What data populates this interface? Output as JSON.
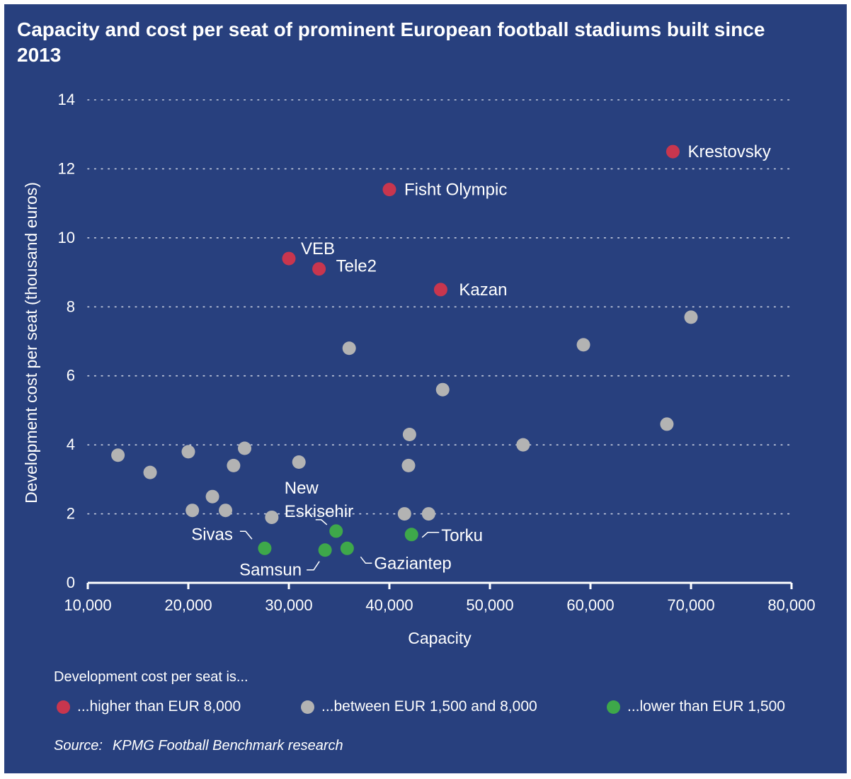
{
  "title": "Capacity and cost per seat of prominent European football stadiums built since 2013",
  "source_label": "Source:",
  "source_text": "KPMG Football Benchmark research",
  "legend": {
    "title": "Development cost per seat is...",
    "items": [
      {
        "label": "...higher than EUR 8,000",
        "color": "#c8364e"
      },
      {
        "label": "...between EUR 1,500 and 8,000",
        "color": "#b3b3b3"
      },
      {
        "label": "...lower than EUR 1,500",
        "color": "#3ea84a"
      }
    ]
  },
  "chart_data": {
    "type": "scatter",
    "title": "Capacity and cost per seat of prominent European football stadiums built since 2013",
    "xlabel": "Capacity",
    "ylabel": "Development cost per seat (thousand euros)",
    "xlim": [
      10000,
      80000
    ],
    "ylim": [
      0,
      14
    ],
    "xticks": [
      10000,
      20000,
      30000,
      40000,
      50000,
      60000,
      70000,
      80000
    ],
    "xtick_labels": [
      "10,000",
      "20,000",
      "30,000",
      "40,000",
      "50,000",
      "60,000",
      "70,000",
      "80,000"
    ],
    "yticks": [
      0,
      2,
      4,
      6,
      8,
      10,
      12,
      14
    ],
    "ytick_labels": [
      "0",
      "2",
      "4",
      "6",
      "8",
      "10",
      "12",
      "14"
    ],
    "grid": "horizontal dotted",
    "legend_position": "bottom",
    "points": [
      {
        "x": 68200,
        "y": 12.5,
        "category": "high",
        "label": "Krestovsky"
      },
      {
        "x": 40000,
        "y": 11.4,
        "category": "high",
        "label": "Fisht Olympic"
      },
      {
        "x": 30000,
        "y": 9.4,
        "category": "high",
        "label": "VEB"
      },
      {
        "x": 33000,
        "y": 9.1,
        "category": "high",
        "label": "Tele2"
      },
      {
        "x": 45100,
        "y": 8.5,
        "category": "high",
        "label": "Kazan"
      },
      {
        "x": 70000,
        "y": 7.7,
        "category": "mid"
      },
      {
        "x": 59300,
        "y": 6.9,
        "category": "mid"
      },
      {
        "x": 36000,
        "y": 6.8,
        "category": "mid"
      },
      {
        "x": 45300,
        "y": 5.6,
        "category": "mid"
      },
      {
        "x": 67600,
        "y": 4.6,
        "category": "mid"
      },
      {
        "x": 42000,
        "y": 4.3,
        "category": "mid"
      },
      {
        "x": 53300,
        "y": 4.0,
        "category": "mid"
      },
      {
        "x": 25600,
        "y": 3.9,
        "category": "mid"
      },
      {
        "x": 20000,
        "y": 3.8,
        "category": "mid"
      },
      {
        "x": 13000,
        "y": 3.7,
        "category": "mid"
      },
      {
        "x": 31000,
        "y": 3.5,
        "category": "mid"
      },
      {
        "x": 41900,
        "y": 3.4,
        "category": "mid"
      },
      {
        "x": 24500,
        "y": 3.4,
        "category": "mid"
      },
      {
        "x": 16200,
        "y": 3.2,
        "category": "mid"
      },
      {
        "x": 22400,
        "y": 2.5,
        "category": "mid"
      },
      {
        "x": 20400,
        "y": 2.1,
        "category": "mid"
      },
      {
        "x": 23700,
        "y": 2.1,
        "category": "mid"
      },
      {
        "x": 43900,
        "y": 2.0,
        "category": "mid"
      },
      {
        "x": 41500,
        "y": 2.0,
        "category": "mid"
      },
      {
        "x": 28300,
        "y": 1.9,
        "category": "mid"
      },
      {
        "x": 42200,
        "y": 1.4,
        "category": "low",
        "label": "Torku"
      },
      {
        "x": 34700,
        "y": 1.5,
        "category": "low",
        "label": "New Eskisehir"
      },
      {
        "x": 35800,
        "y": 1.0,
        "category": "low",
        "label": "Gaziantep"
      },
      {
        "x": 33600,
        "y": 0.95,
        "category": "low",
        "label": "Samsun"
      },
      {
        "x": 27600,
        "y": 1.0,
        "category": "low",
        "label": "Sivas"
      }
    ]
  }
}
